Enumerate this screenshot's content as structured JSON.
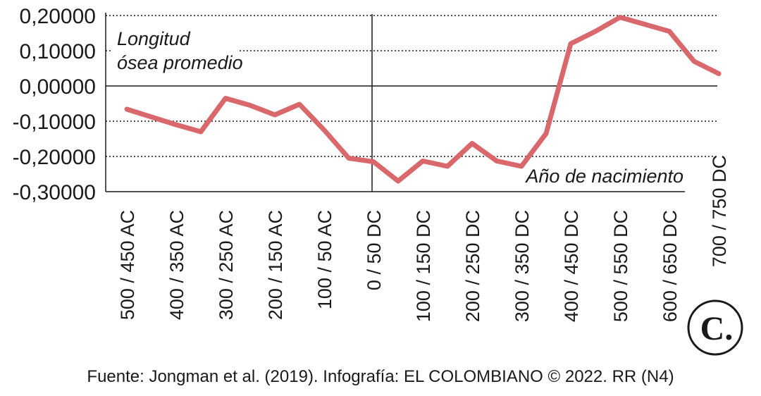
{
  "chart_data": {
    "type": "line",
    "annotations": [
      "Longitud",
      "ósea promedio",
      "Año de nacimiento"
    ],
    "source": "Fuente: Jongman et al. (2019). Infografía: EL COLOMBIANO © 2022. RR (N4)",
    "logo": "C.",
    "categories": [
      "500 / 450 AC",
      null,
      "400 / 350 AC",
      null,
      "300 / 250 AC",
      null,
      "200 / 150 AC",
      null,
      "100 / 50 AC",
      null,
      "0 / 50 DC",
      null,
      "100 / 150 DC",
      null,
      "200 / 250 DC",
      null,
      "300 / 350 DC",
      null,
      "400 / 450 DC",
      null,
      "500 / 550 DC",
      null,
      "600 / 650 DC",
      null,
      "700 / 750 DC"
    ],
    "series": [
      {
        "name": "Longitud ósea promedio",
        "color": "#d9686c",
        "values": [
          -0.066,
          -0.088,
          -0.11,
          -0.13,
          -0.035,
          -0.055,
          -0.082,
          -0.052,
          -0.125,
          -0.205,
          -0.215,
          -0.27,
          -0.213,
          -0.228,
          -0.163,
          -0.213,
          -0.228,
          -0.135,
          0.12,
          0.155,
          0.195,
          0.175,
          0.155,
          0.07,
          0.035
        ]
      }
    ],
    "ylim": [
      -0.3,
      0.2
    ],
    "yticks": [
      {
        "value": 0.2,
        "label": "0,20000"
      },
      {
        "value": 0.1,
        "label": "0,10000"
      },
      {
        "value": 0,
        "label": "0,00000"
      },
      {
        "value": -0.1,
        "label": "-0,10000"
      },
      {
        "value": -0.2,
        "label": "-0,20000"
      },
      {
        "value": -0.3,
        "label": "-0,30000"
      }
    ],
    "grid": true
  }
}
